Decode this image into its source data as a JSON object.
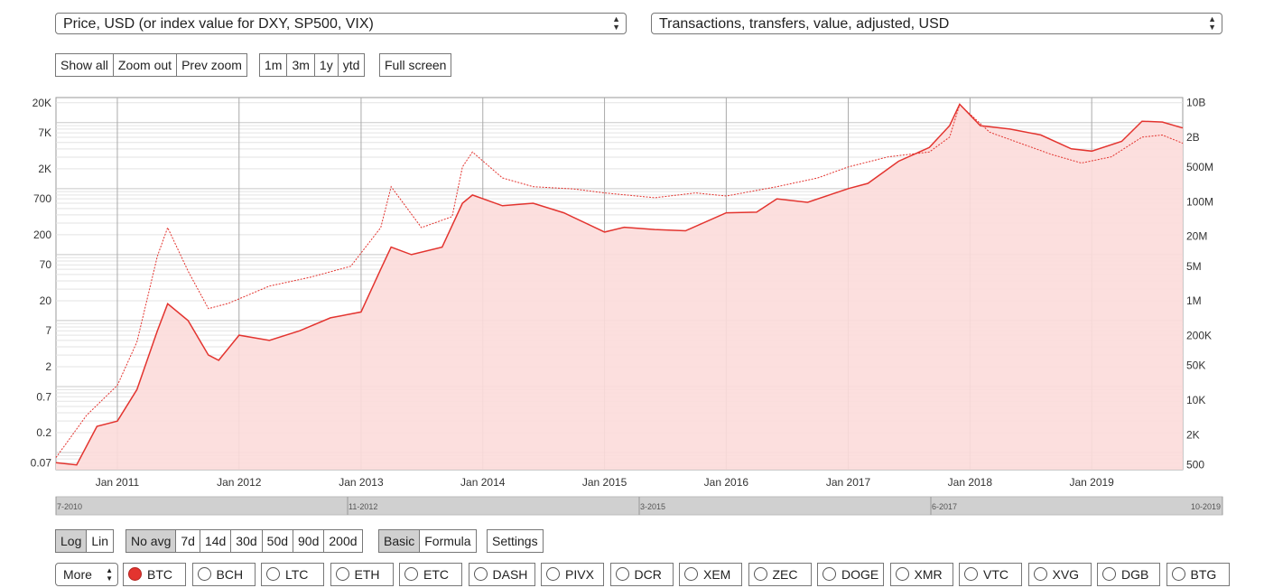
{
  "selectors": {
    "left": "Price, USD (or index value for DXY, SP500, VIX)",
    "right": "Transactions, transfers, value, adjusted, USD"
  },
  "zoom_buttons": [
    "Show all",
    "Zoom out",
    "Prev zoom"
  ],
  "range_buttons": [
    "1m",
    "3m",
    "1y",
    "ytd"
  ],
  "fullscreen_label": "Full screen",
  "scale_buttons": [
    {
      "label": "Log",
      "active": true
    },
    {
      "label": "Lin",
      "active": false
    }
  ],
  "avg_buttons": [
    {
      "label": "No avg",
      "active": true
    },
    {
      "label": "7d",
      "active": false
    },
    {
      "label": "14d",
      "active": false
    },
    {
      "label": "30d",
      "active": false
    },
    {
      "label": "50d",
      "active": false
    },
    {
      "label": "90d",
      "active": false
    },
    {
      "label": "200d",
      "active": false
    }
  ],
  "mode_buttons": [
    {
      "label": "Basic",
      "active": true
    },
    {
      "label": "Formula",
      "active": false
    }
  ],
  "settings_label": "Settings",
  "more_label": "More",
  "coins": [
    {
      "label": "BTC",
      "selected": true
    },
    {
      "label": "BCH",
      "selected": false
    },
    {
      "label": "LTC",
      "selected": false
    },
    {
      "label": "ETH",
      "selected": false
    },
    {
      "label": "ETC",
      "selected": false
    },
    {
      "label": "DASH",
      "selected": false
    },
    {
      "label": "PIVX",
      "selected": false
    },
    {
      "label": "DCR",
      "selected": false
    },
    {
      "label": "XEM",
      "selected": false
    },
    {
      "label": "ZEC",
      "selected": false
    },
    {
      "label": "DOGE",
      "selected": false
    },
    {
      "label": "XMR",
      "selected": false
    },
    {
      "label": "VTC",
      "selected": false
    },
    {
      "label": "XVG",
      "selected": false
    },
    {
      "label": "DGB",
      "selected": false
    },
    {
      "label": "BTG",
      "selected": false
    }
  ],
  "colors": {
    "accent": "#e3342f",
    "fill": "#fcdcda",
    "grid": "#d6d6d6"
  },
  "chart_data": {
    "type": "line",
    "y_scale": "log",
    "y_left_ticks": [
      {
        "value": 20000,
        "label": "20K"
      },
      {
        "value": 7000,
        "label": "7K"
      },
      {
        "value": 2000,
        "label": "2K"
      },
      {
        "value": 700,
        "label": "700"
      },
      {
        "value": 200,
        "label": "200"
      },
      {
        "value": 70,
        "label": "70"
      },
      {
        "value": 20,
        "label": "20"
      },
      {
        "value": 7,
        "label": "7"
      },
      {
        "value": 2,
        "label": "2"
      },
      {
        "value": 0.7,
        "label": "0.7"
      },
      {
        "value": 0.2,
        "label": "0.2"
      },
      {
        "value": 0.07,
        "label": "0.07"
      }
    ],
    "y_right_ticks": [
      {
        "value": 10000000000,
        "label": "10B"
      },
      {
        "value": 2000000000,
        "label": "2B"
      },
      {
        "value": 500000000,
        "label": "500M"
      },
      {
        "value": 100000000,
        "label": "100M"
      },
      {
        "value": 20000000,
        "label": "20M"
      },
      {
        "value": 5000000,
        "label": "5M"
      },
      {
        "value": 1000000,
        "label": "1M"
      },
      {
        "value": 200000,
        "label": "200K"
      },
      {
        "value": 50000,
        "label": "50K"
      },
      {
        "value": 10000,
        "label": "10K"
      },
      {
        "value": 2000,
        "label": "2K"
      },
      {
        "value": 500,
        "label": "500"
      }
    ],
    "x_ticks": [
      "Jan 2011",
      "Jan 2012",
      "Jan 2013",
      "Jan 2014",
      "Jan 2015",
      "Jan 2016",
      "Jan 2017",
      "Jan 2018",
      "Jan 2019"
    ],
    "x_range": [
      "2010-07",
      "2019-10"
    ],
    "navigator_labels": [
      "7-2010",
      "11-2012",
      "3-2015",
      "6-2017",
      "10-2019"
    ],
    "series": [
      {
        "axis": "left",
        "style": "solid",
        "x": [
          "2010-07",
          "2010-09",
          "2010-11",
          "2011-01",
          "2011-03",
          "2011-05",
          "2011-06",
          "2011-08",
          "2011-10",
          "2011-11",
          "2012-01",
          "2012-04",
          "2012-07",
          "2012-10",
          "2013-01",
          "2013-03",
          "2013-04",
          "2013-06",
          "2013-09",
          "2013-11",
          "2013-12",
          "2014-03",
          "2014-06",
          "2014-09",
          "2015-01",
          "2015-03",
          "2015-06",
          "2015-09",
          "2016-01",
          "2016-04",
          "2016-06",
          "2016-09",
          "2017-01",
          "2017-03",
          "2017-06",
          "2017-09",
          "2017-11",
          "2017-12",
          "2018-02",
          "2018-05",
          "2018-08",
          "2018-11",
          "2019-01",
          "2019-04",
          "2019-06",
          "2019-08",
          "2019-10"
        ],
        "values": [
          0.07,
          0.065,
          0.25,
          0.3,
          0.9,
          7,
          18,
          10,
          3,
          2.5,
          6,
          5,
          7,
          11,
          13.5,
          60,
          130,
          100,
          130,
          600,
          800,
          550,
          600,
          430,
          220,
          260,
          240,
          230,
          430,
          440,
          700,
          620,
          1000,
          1200,
          2600,
          4200,
          9000,
          19000,
          9000,
          8000,
          6500,
          4000,
          3700,
          5200,
          10500,
          10200,
          8300
        ]
      },
      {
        "axis": "right",
        "style": "dashed",
        "x": [
          "2010-07",
          "2010-10",
          "2011-01",
          "2011-03",
          "2011-05",
          "2011-06",
          "2011-08",
          "2011-10",
          "2011-12",
          "2012-04",
          "2012-08",
          "2012-12",
          "2013-03",
          "2013-04",
          "2013-07",
          "2013-10",
          "2013-11",
          "2013-12",
          "2014-03",
          "2014-06",
          "2014-10",
          "2015-01",
          "2015-06",
          "2015-10",
          "2016-01",
          "2016-06",
          "2016-10",
          "2017-01",
          "2017-05",
          "2017-09",
          "2017-11",
          "2017-12",
          "2018-03",
          "2018-06",
          "2018-09",
          "2018-12",
          "2019-03",
          "2019-06",
          "2019-08",
          "2019-10"
        ],
        "values": [
          700,
          5000,
          20000,
          150000,
          8000000,
          30000000,
          4000000,
          700000,
          900000,
          2000000,
          3000000,
          5000000,
          30000000,
          200000000,
          30000000,
          50000000,
          500000000,
          1000000000,
          300000000,
          200000000,
          180000000,
          150000000,
          120000000,
          150000000,
          130000000,
          200000000,
          300000000,
          500000000,
          800000000,
          1000000000,
          2000000000,
          9000000000,
          2500000000,
          1500000000,
          900000000,
          600000000,
          800000000,
          2000000000,
          2200000000,
          1500000000
        ]
      }
    ]
  }
}
